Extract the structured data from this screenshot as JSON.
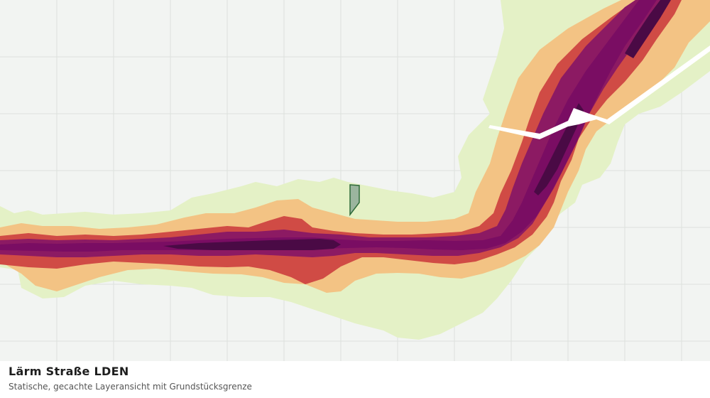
{
  "layer": {
    "title": "Lärm Straße LDEN",
    "subtitle": "Statische, gecachte Layeransicht mit Grundstücksgrenze"
  },
  "colors": {
    "background": "#f2f4f2",
    "grid": "#dde1dd",
    "noise_band_1": "#e4f1c6",
    "noise_band_2": "#f3c384",
    "noise_band_3": "#d04b45",
    "noise_band_4": "#8c1a63",
    "noise_band_5": "#7a0d63",
    "noise_band_6": "#4a0a45",
    "parcel_fill": "#9bb59e",
    "parcel_stroke": "#2f6b3a"
  },
  "icons": {
    "parcel": "parcel-boundary-shape"
  }
}
